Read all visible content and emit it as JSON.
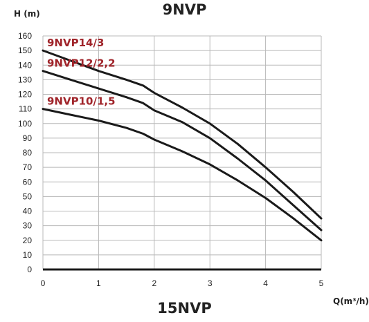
{
  "header": {
    "title": "9NVP"
  },
  "footer": {
    "title": "15NVP"
  },
  "chart_data": {
    "type": "line",
    "title": "9NVP",
    "xlabel": "Q(m³/h)",
    "ylabel": "H (m)",
    "xlim": [
      0,
      5
    ],
    "ylim": [
      0,
      160
    ],
    "xticks": [
      0,
      1,
      2,
      3,
      4,
      5
    ],
    "yticks": [
      0,
      10,
      20,
      30,
      40,
      50,
      60,
      70,
      80,
      90,
      100,
      110,
      120,
      130,
      140,
      150,
      160
    ],
    "grid": true,
    "series": [
      {
        "name": "9NVP14/3",
        "x": [
          0,
          0.5,
          1,
          1.5,
          1.8,
          2,
          2.5,
          3,
          3.5,
          4,
          4.5,
          5
        ],
        "y": [
          150,
          143,
          136,
          130,
          126,
          121,
          111,
          100,
          86,
          70,
          53,
          35
        ]
      },
      {
        "name": "9NVP12/2,2",
        "x": [
          0,
          0.5,
          1,
          1.5,
          1.8,
          2,
          2.5,
          3,
          3.5,
          4,
          4.5,
          5
        ],
        "y": [
          136,
          130,
          124,
          118,
          114,
          109,
          101,
          90,
          76,
          61,
          44,
          27
        ]
      },
      {
        "name": "9NVP10/1,5",
        "x": [
          0,
          0.5,
          1,
          1.5,
          1.8,
          2,
          2.5,
          3,
          3.5,
          4,
          4.5,
          5
        ],
        "y": [
          110,
          106,
          102,
          97,
          93,
          89,
          81,
          72,
          61,
          49,
          35,
          20
        ]
      }
    ],
    "colors": {
      "lines": "#1a1a1a",
      "labels": "#a0242a",
      "grid": "#b8b8b8"
    }
  }
}
